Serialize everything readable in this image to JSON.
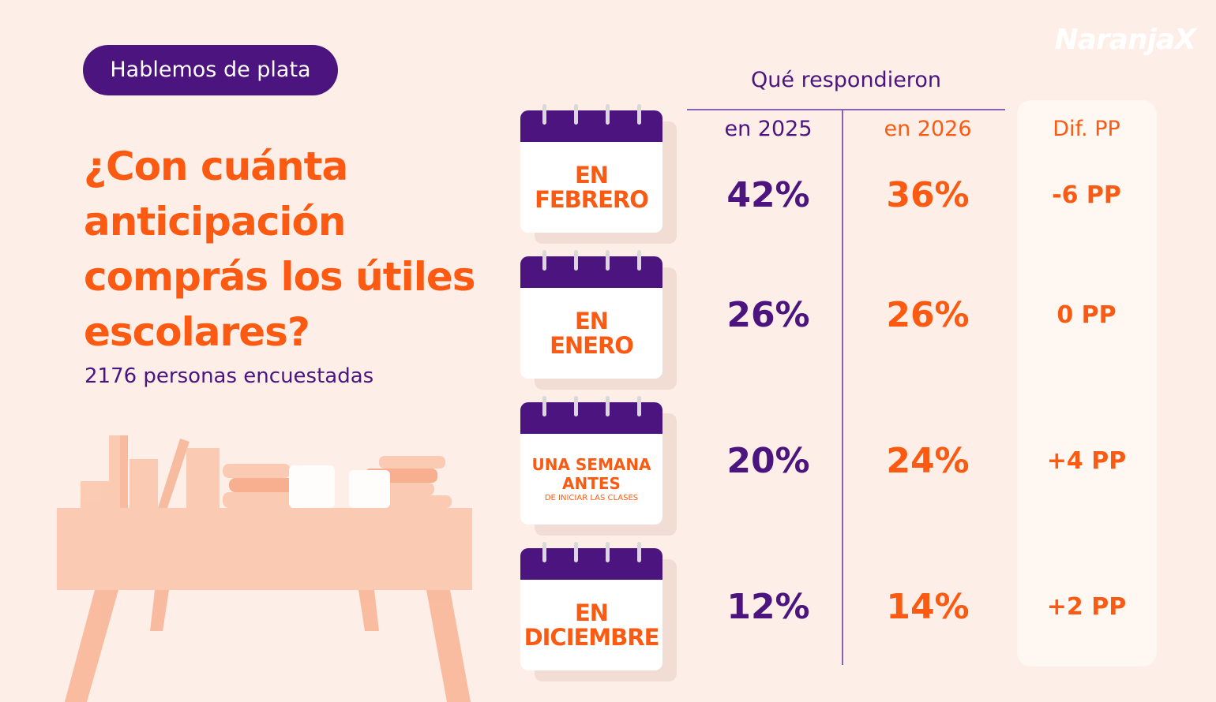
{
  "brand": "NaranjaX",
  "tag": "Hablemos de plata",
  "title_lines": [
    "¿Con cuánta",
    "anticipación",
    "comprás los útiles",
    "escolares?"
  ],
  "subtitle": "2176 personas encuestadas",
  "table": {
    "header": "Qué respondieron",
    "columns": [
      "en 2025",
      "en 2026",
      "Dif. PP"
    ],
    "rows": [
      {
        "label": [
          "EN",
          "FEBRERO"
        ],
        "cells": [
          "42%",
          "36%",
          "-6 PP"
        ]
      },
      {
        "label": [
          "EN",
          "ENERO"
        ],
        "cells": [
          "26%",
          "26%",
          "0 PP"
        ]
      },
      {
        "label": [
          "UNA SEMANA",
          "ANTES"
        ],
        "note": "DE INICIAR LAS CLASES",
        "cells": [
          "20%",
          "24%",
          "+4 PP"
        ]
      },
      {
        "label": [
          "EN",
          "DICIEMBRE"
        ],
        "cells": [
          "12%",
          "14%",
          "+2 PP"
        ]
      }
    ]
  }
}
